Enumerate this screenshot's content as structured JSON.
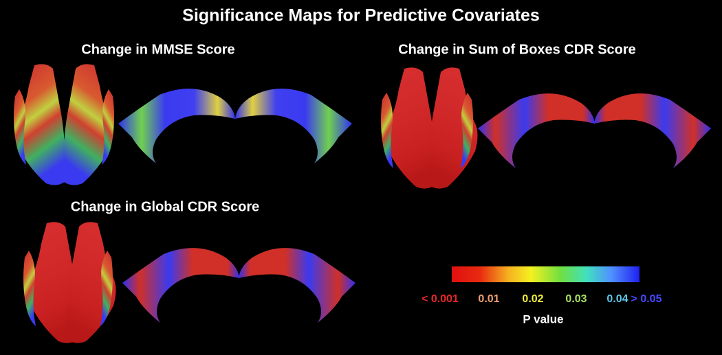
{
  "header": {
    "title": "Significance Maps for Predictive Covariates"
  },
  "panels": [
    {
      "title": "Change in MMSE Score"
    },
    {
      "title": "Change in Sum of Boxes CDR Score"
    },
    {
      "title": "Change in Global CDR Score"
    }
  ],
  "colorbar": {
    "labels": [
      "< 0.001",
      "0.01",
      "0.02",
      "0.03",
      "0.04",
      "> 0.05"
    ],
    "colors": [
      "#e8262a",
      "#f0a070",
      "#f2ee3c",
      "#a8e060",
      "#60c8e8",
      "#4848ff"
    ],
    "axis_label": "P value"
  }
}
